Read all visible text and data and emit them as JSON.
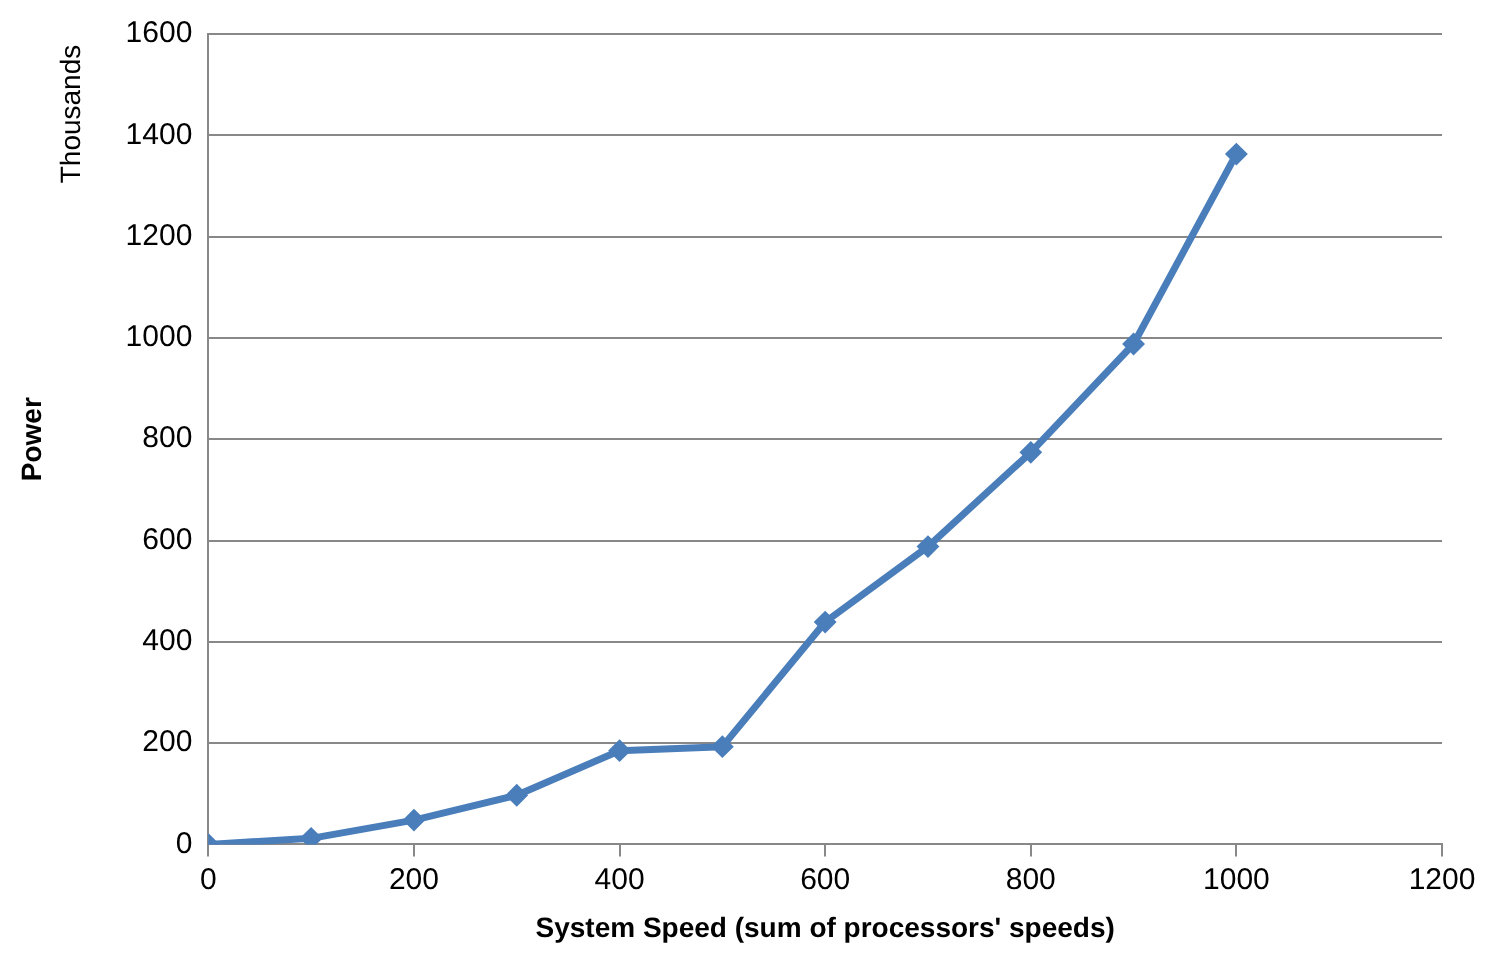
{
  "chart_data": {
    "type": "line",
    "xlabel": "System Speed (sum of processors' speeds)",
    "ylabel": "Power",
    "annotations": [
      "Thousands"
    ],
    "x": [
      0,
      100,
      200,
      300,
      400,
      500,
      600,
      700,
      800,
      900,
      1000
    ],
    "series": [
      {
        "color": "#4a7ebb",
        "values": [
          0,
          12,
          48,
          97,
          185,
          193,
          439,
          588,
          774,
          988,
          1363
        ]
      }
    ],
    "xlim": [
      0,
      1200
    ],
    "xticks": [
      0,
      200,
      400,
      600,
      800,
      1000,
      1200
    ],
    "ylim": [
      0,
      1600
    ],
    "yticks": [
      0,
      200,
      400,
      600,
      800,
      1000,
      1200,
      1400,
      1600
    ],
    "grid": "y",
    "legend": false,
    "marker": "diamond",
    "line_style": "solid"
  }
}
